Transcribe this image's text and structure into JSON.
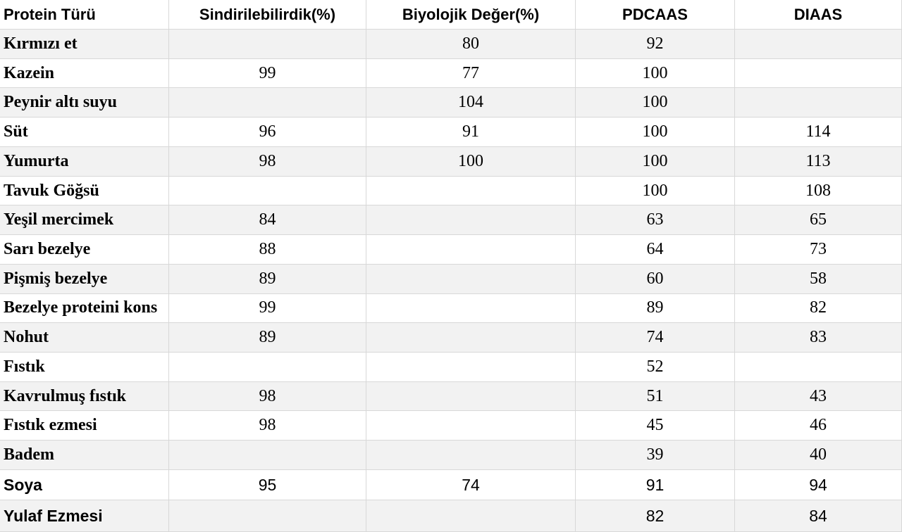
{
  "table": {
    "header": [
      "Protein Türü",
      "Sindirilebilirdik(%)",
      "Biyolojik Değer(%)",
      "PDCAAS",
      "DIAAS"
    ],
    "rows": [
      [
        "Kırmızı et",
        null,
        80,
        92,
        null
      ],
      [
        "Kazein",
        99,
        77,
        100,
        null
      ],
      [
        "Peynir altı suyu",
        null,
        104,
        100,
        null
      ],
      [
        "Süt",
        96,
        91,
        100,
        114
      ],
      [
        "Yumurta",
        98,
        100,
        100,
        113
      ],
      [
        "Tavuk Göğsü",
        null,
        null,
        100,
        108
      ],
      [
        "Yeşil mercimek",
        84,
        null,
        63,
        65
      ],
      [
        "Sarı bezelye",
        88,
        null,
        64,
        73
      ],
      [
        "Pişmiş bezelye",
        89,
        null,
        60,
        58
      ],
      [
        "Bezelye proteini kons",
        99,
        null,
        89,
        82
      ],
      [
        "Nohut",
        89,
        null,
        74,
        83
      ],
      [
        "Fıstık",
        null,
        null,
        52,
        null
      ],
      [
        "Kavrulmuş fıstık",
        98,
        null,
        51,
        43
      ],
      [
        "Fıstık ezmesi",
        98,
        null,
        45,
        46
      ],
      [
        "Badem",
        null,
        null,
        39,
        40
      ],
      [
        "Soya",
        95,
        74,
        91,
        94
      ],
      [
        "Yulaf Ezmesi",
        null,
        null,
        82,
        84
      ]
    ]
  }
}
